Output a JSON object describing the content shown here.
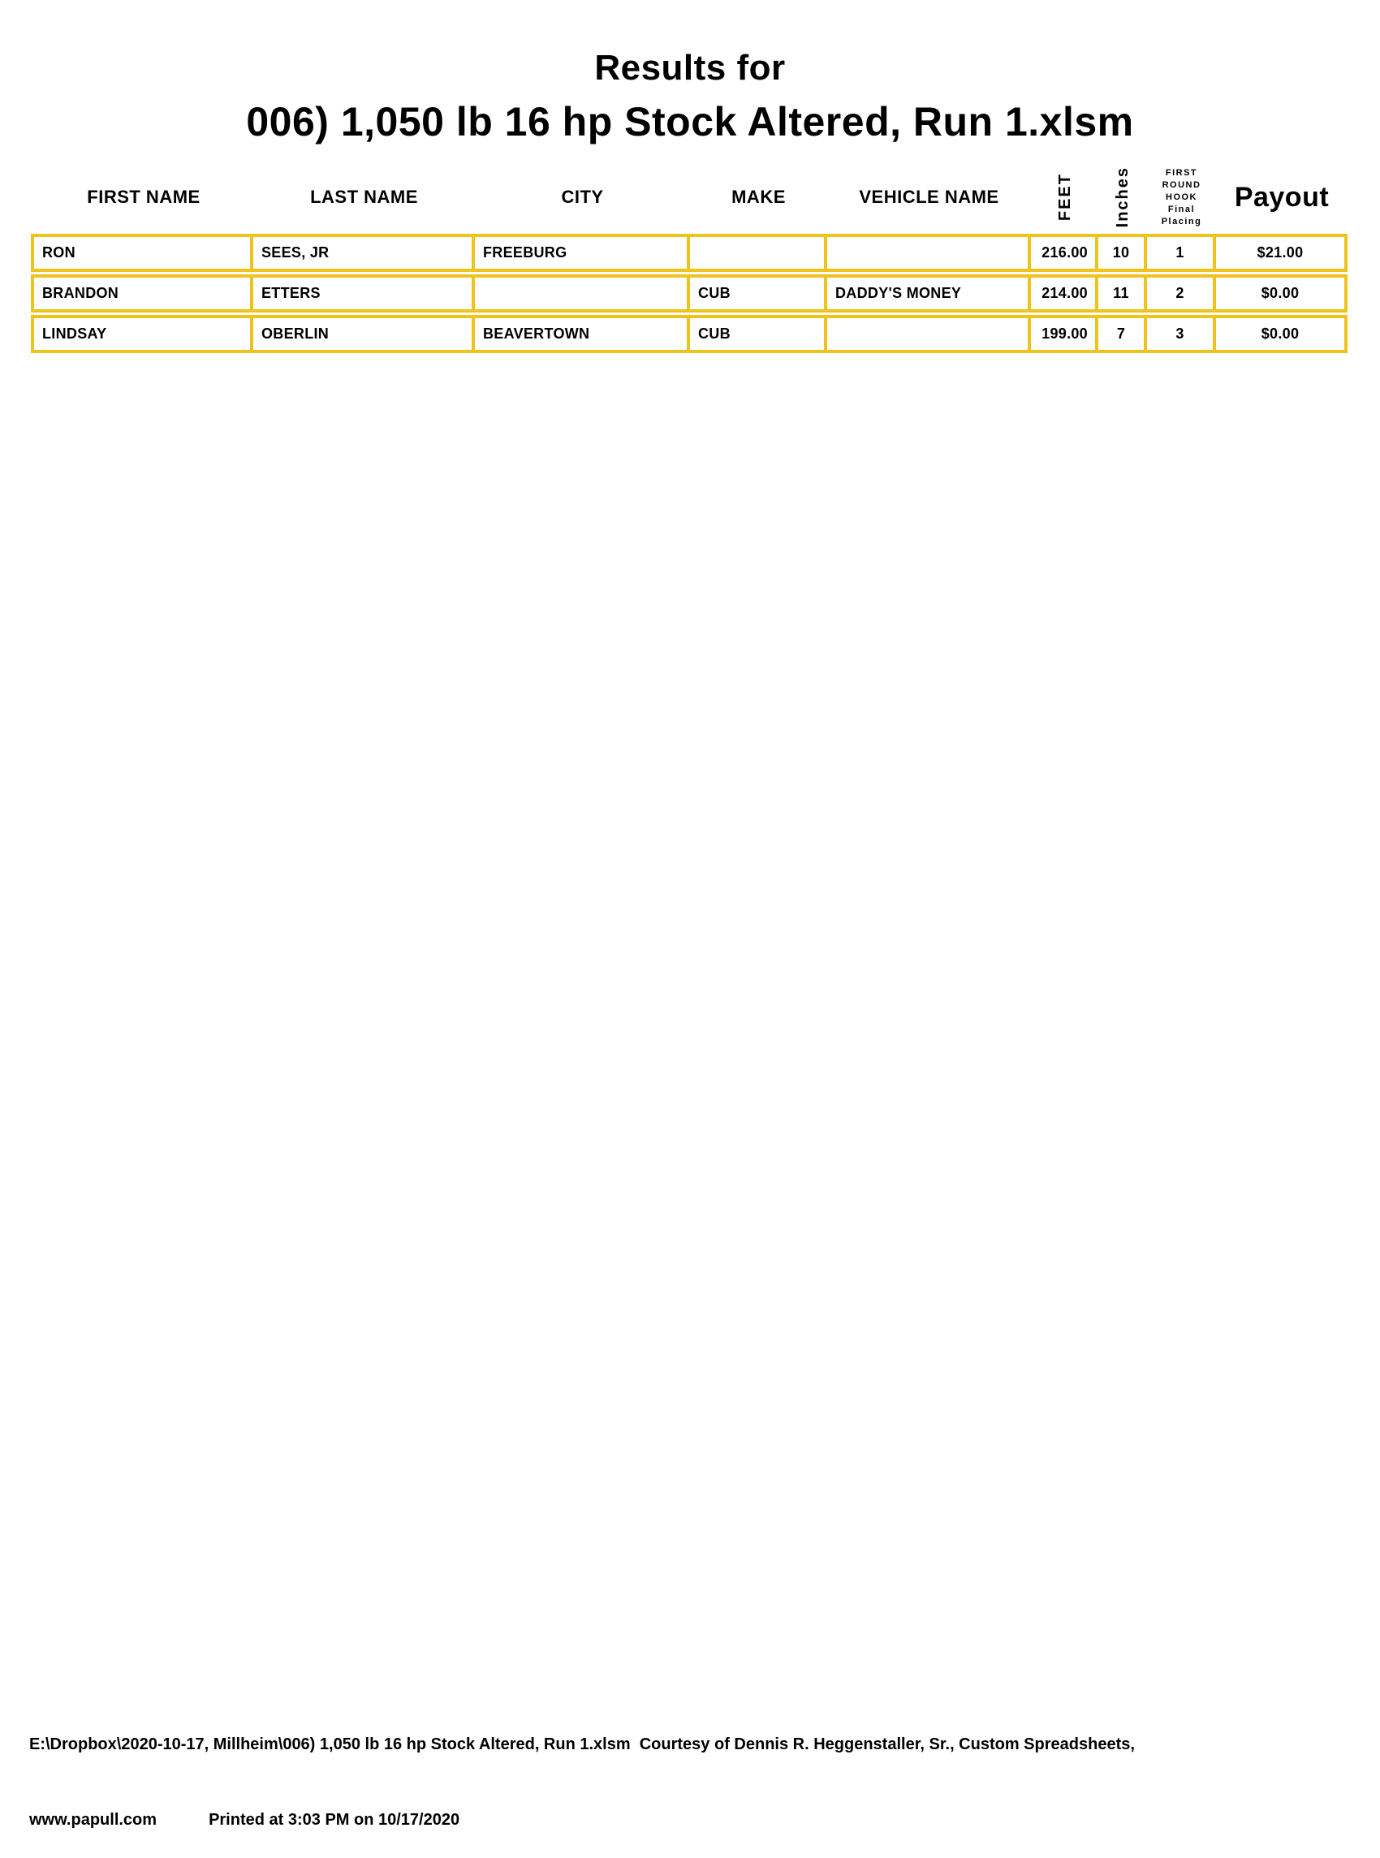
{
  "title": {
    "line1": "Results for",
    "line2": "006) 1,050 lb 16 hp Stock Altered, Run 1.xlsm"
  },
  "colors": {
    "table_border_gold": "#EFC31D",
    "text": "#000000",
    "page_background": "#FFFFFF"
  },
  "table": {
    "columns": [
      {
        "key": "first_name",
        "label": "FIRST NAME"
      },
      {
        "key": "last_name",
        "label": "LAST NAME"
      },
      {
        "key": "city",
        "label": "CITY"
      },
      {
        "key": "make",
        "label": "MAKE"
      },
      {
        "key": "vehicle_name",
        "label": "VEHICLE NAME"
      },
      {
        "key": "feet",
        "label": "FEET",
        "rotated": true
      },
      {
        "key": "inches",
        "label": "Inches",
        "rotated": true
      },
      {
        "key": "placing",
        "lines": [
          "FIRST ROUND",
          "HOOK",
          "Final Placing"
        ]
      },
      {
        "key": "payout",
        "label": "Payout"
      }
    ],
    "rows": [
      {
        "first_name": "RON",
        "last_name": "SEES, JR",
        "city": "FREEBURG",
        "make": "",
        "vehicle_name": "",
        "feet": "216.00",
        "inches": "10",
        "placing": "1",
        "payout": "$21.00"
      },
      {
        "first_name": "BRANDON",
        "last_name": "ETTERS",
        "city": "",
        "make": "CUB",
        "vehicle_name": "DADDY'S MONEY",
        "feet": "214.00",
        "inches": "11",
        "placing": "2",
        "payout": "$0.00"
      },
      {
        "first_name": "LINDSAY",
        "last_name": "OBERLIN",
        "city": "BEAVERTOWN",
        "make": "CUB",
        "vehicle_name": "",
        "feet": "199.00",
        "inches": "7",
        "placing": "3",
        "payout": "$0.00"
      }
    ]
  },
  "footer": {
    "line1": "E:\\Dropbox\\2020-10-17, Millheim\\006) 1,050 lb 16 hp Stock Altered, Run 1.xlsm  Courtesy of Dennis R. Heggenstaller, Sr., Custom Spreadsheets,",
    "website": "www.papull.com",
    "printed_at": "Printed at 3:03 PM on 10/17/2020"
  }
}
